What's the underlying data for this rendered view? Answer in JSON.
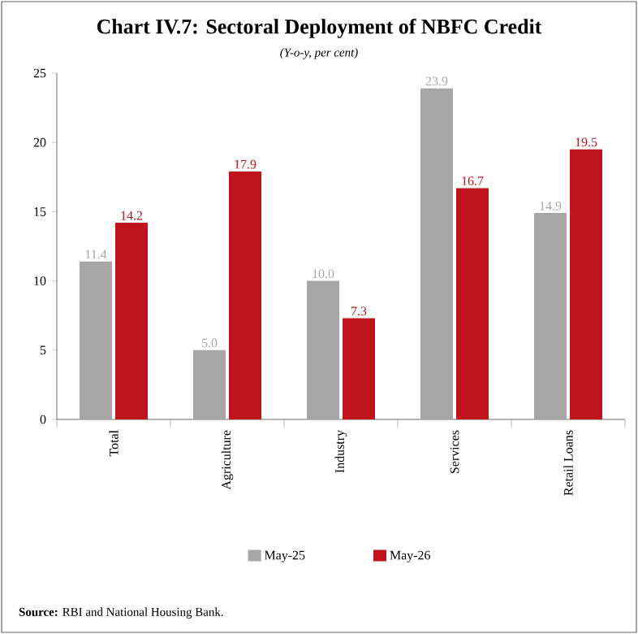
{
  "chart_data": {
    "type": "bar",
    "title": "Chart IV.7: Sectoral Deployment of NBFC Credit",
    "subtitle": "(Y-o-y, per cent)",
    "categories": [
      "Total",
      "Agriculture",
      "Industry",
      "Services",
      "Retail Loans"
    ],
    "series": [
      {
        "name": "May-25",
        "color": "#a6a6a6",
        "values": [
          11.4,
          5.0,
          10.0,
          23.9,
          14.9
        ],
        "value_labels": [
          "11.4",
          "5.0",
          "10.0",
          "23.9",
          "14.9"
        ]
      },
      {
        "name": "May-26",
        "color": "#c0141c",
        "values": [
          14.2,
          17.9,
          7.3,
          16.7,
          19.5
        ],
        "value_labels": [
          "14.2",
          "17.9",
          "7.3",
          "16.7",
          "19.5"
        ]
      }
    ],
    "ylim": [
      0,
      25
    ],
    "yticks": [
      0,
      5,
      10,
      15,
      20,
      25
    ],
    "legend": "bottom",
    "annotations": [
      "**Source:** RBI and National Housing Bank."
    ]
  }
}
